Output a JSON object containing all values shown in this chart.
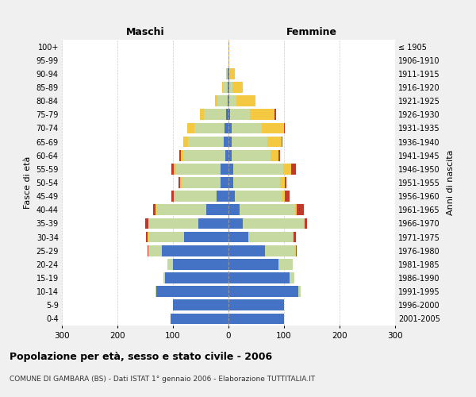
{
  "age_groups": [
    "0-4",
    "5-9",
    "10-14",
    "15-19",
    "20-24",
    "25-29",
    "30-34",
    "35-39",
    "40-44",
    "45-49",
    "50-54",
    "55-59",
    "60-64",
    "65-69",
    "70-74",
    "75-79",
    "80-84",
    "85-89",
    "90-94",
    "95-99",
    "100+"
  ],
  "birth_years": [
    "2001-2005",
    "1996-2000",
    "1991-1995",
    "1986-1990",
    "1981-1985",
    "1976-1980",
    "1971-1975",
    "1966-1970",
    "1961-1965",
    "1956-1960",
    "1951-1955",
    "1946-1950",
    "1941-1945",
    "1936-1940",
    "1931-1935",
    "1926-1930",
    "1921-1925",
    "1916-1920",
    "1911-1915",
    "1906-1910",
    "≤ 1905"
  ],
  "males": {
    "celibi": [
      105,
      100,
      130,
      115,
      100,
      120,
      80,
      55,
      40,
      22,
      15,
      15,
      6,
      8,
      7,
      4,
      2,
      2,
      1,
      0,
      0
    ],
    "coniugati": [
      0,
      0,
      2,
      2,
      10,
      25,
      65,
      90,
      90,
      75,
      70,
      80,
      75,
      65,
      55,
      40,
      18,
      8,
      3,
      0,
      0
    ],
    "vedovi": [
      0,
      0,
      0,
      0,
      0,
      0,
      1,
      0,
      1,
      1,
      2,
      3,
      5,
      8,
      12,
      8,
      5,
      2,
      0,
      0,
      0
    ],
    "divorziati": [
      0,
      0,
      0,
      0,
      0,
      1,
      2,
      5,
      5,
      5,
      3,
      5,
      2,
      1,
      1,
      0,
      0,
      0,
      0,
      0,
      0
    ]
  },
  "females": {
    "nubili": [
      100,
      100,
      125,
      110,
      90,
      65,
      35,
      25,
      20,
      12,
      8,
      8,
      5,
      5,
      5,
      3,
      2,
      2,
      1,
      0,
      0
    ],
    "coniugate": [
      0,
      0,
      5,
      8,
      25,
      55,
      80,
      110,
      100,
      85,
      85,
      90,
      70,
      65,
      55,
      35,
      12,
      5,
      2,
      0,
      0
    ],
    "vedove": [
      0,
      0,
      0,
      0,
      0,
      1,
      2,
      2,
      3,
      5,
      8,
      15,
      15,
      25,
      40,
      45,
      35,
      18,
      8,
      2,
      1
    ],
    "divorziate": [
      0,
      0,
      0,
      0,
      0,
      2,
      5,
      5,
      12,
      8,
      3,
      8,
      3,
      2,
      2,
      2,
      0,
      0,
      0,
      0,
      0
    ]
  },
  "colors": {
    "celibi": "#4472c4",
    "coniugati": "#c5d9a0",
    "vedovi": "#f5c842",
    "divorziati": "#c0392b"
  },
  "xlim": 300,
  "title": "Popolazione per età, sesso e stato civile - 2006",
  "subtitle": "COMUNE DI GAMBARA (BS) - Dati ISTAT 1° gennaio 2006 - Elaborazione TUTTITALIA.IT",
  "ylabel_left": "Fasce di età",
  "ylabel_right": "Anni di nascita",
  "xlabel_left": "Maschi",
  "xlabel_right": "Femmine",
  "bg_color": "#f0f0f0",
  "plot_bg_color": "#ffffff"
}
